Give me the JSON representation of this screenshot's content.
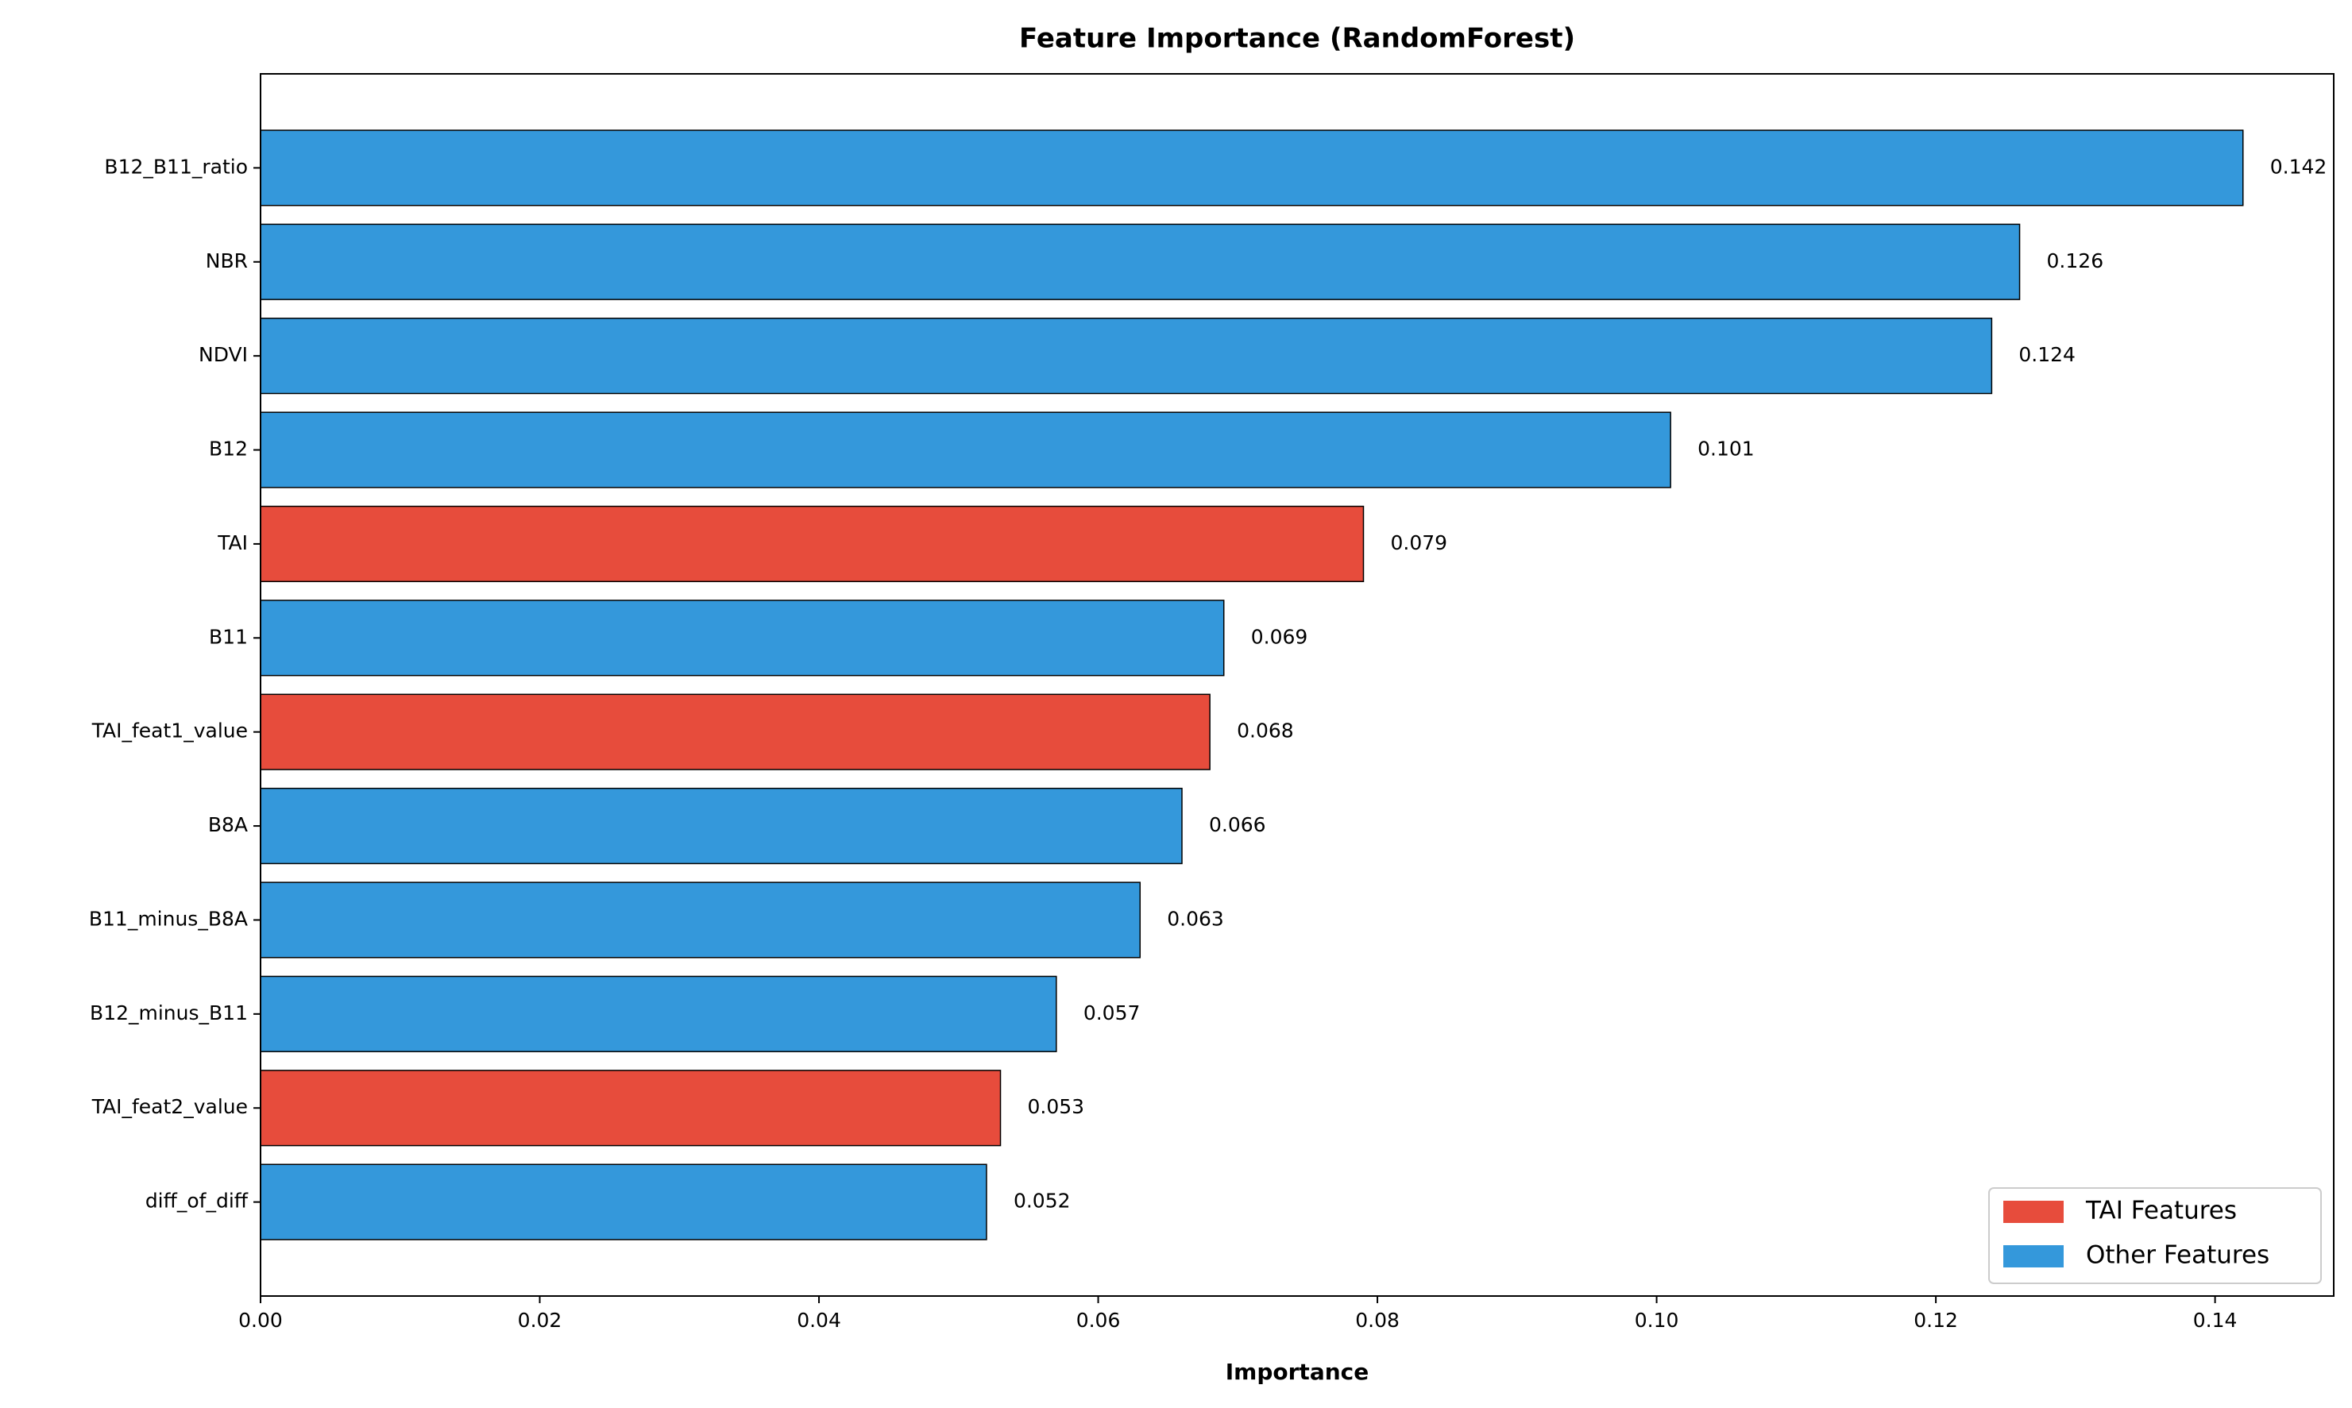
{
  "chart_data": {
    "type": "barh",
    "title": "Feature Importance (RandomForest)",
    "x_label": "Importance",
    "categories": [
      "B12_B11_ratio",
      "NBR",
      "NDVI",
      "B12",
      "TAI",
      "B11",
      "TAI_feat1_value",
      "B8A",
      "B11_minus_B8A",
      "B12_minus_B11",
      "TAI_feat2_value",
      "diff_of_diff"
    ],
    "series": [
      {
        "name": "TAI Features",
        "color": "#e74c3c",
        "values": [
          null,
          null,
          null,
          null,
          0.079,
          null,
          0.068,
          null,
          null,
          null,
          0.053,
          null
        ]
      },
      {
        "name": "Other Features",
        "color": "#3498db",
        "values": [
          0.142,
          0.126,
          0.124,
          0.101,
          null,
          0.069,
          null,
          0.066,
          0.063,
          0.057,
          null,
          0.052
        ]
      }
    ],
    "xlim": [
      0,
      0.1485
    ],
    "xticks": [
      {
        "value": 0,
        "label": "0.00"
      },
      {
        "value": 0.02,
        "label": "0.02"
      },
      {
        "value": 0.04,
        "label": "0.04"
      },
      {
        "value": 0.06,
        "label": "0.06"
      },
      {
        "value": 0.08,
        "label": "0.08"
      },
      {
        "value": 0.1,
        "label": "0.10"
      },
      {
        "value": 0.12,
        "label": "0.12"
      },
      {
        "value": 0.14,
        "label": "0.14"
      }
    ],
    "legend": "lower right"
  }
}
